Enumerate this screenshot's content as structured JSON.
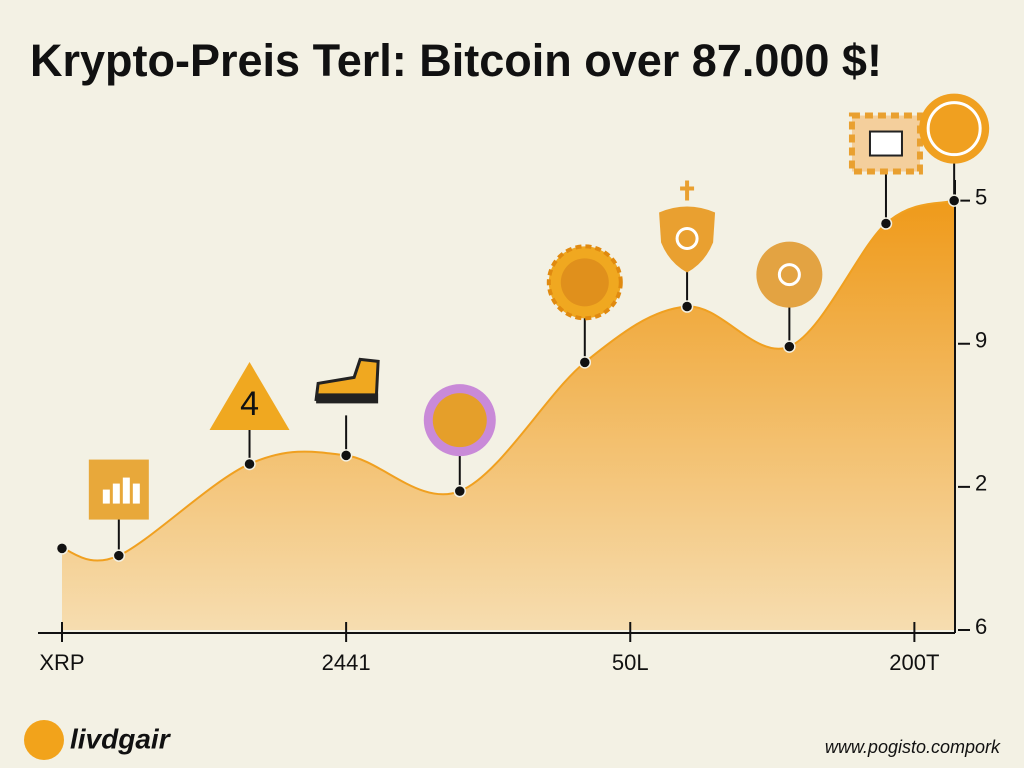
{
  "chart_data": {
    "type": "area",
    "title": "Krypto-Preis Terl: Bitcoin over 87.000 $!",
    "x": [
      0,
      0.2,
      0.66,
      1.0,
      1.4,
      1.84,
      2.2,
      2.56,
      2.9,
      3.14
    ],
    "values": [
      0.57,
      0.52,
      1.16,
      1.22,
      0.97,
      1.87,
      2.26,
      1.98,
      2.84,
      3.0
    ],
    "color": "#f0a020",
    "xlim": [
      0,
      3.15
    ],
    "xticks": [
      {
        "value": 0,
        "label": "XRP"
      },
      {
        "value": 1,
        "label": "2441"
      },
      {
        "value": 2,
        "label": "50L"
      },
      {
        "value": 3,
        "label": "200T"
      }
    ],
    "ylim": [
      0,
      3.2
    ],
    "yticks": [
      {
        "value": 0,
        "label": "6"
      },
      {
        "value": 1,
        "label": "2"
      },
      {
        "value": 2,
        "label": "9"
      },
      {
        "value": 3,
        "label": "5"
      }
    ],
    "annotations": [
      "4"
    ]
  },
  "footer": {
    "brand": "livdgair",
    "url": "www.pogisto.compork"
  }
}
